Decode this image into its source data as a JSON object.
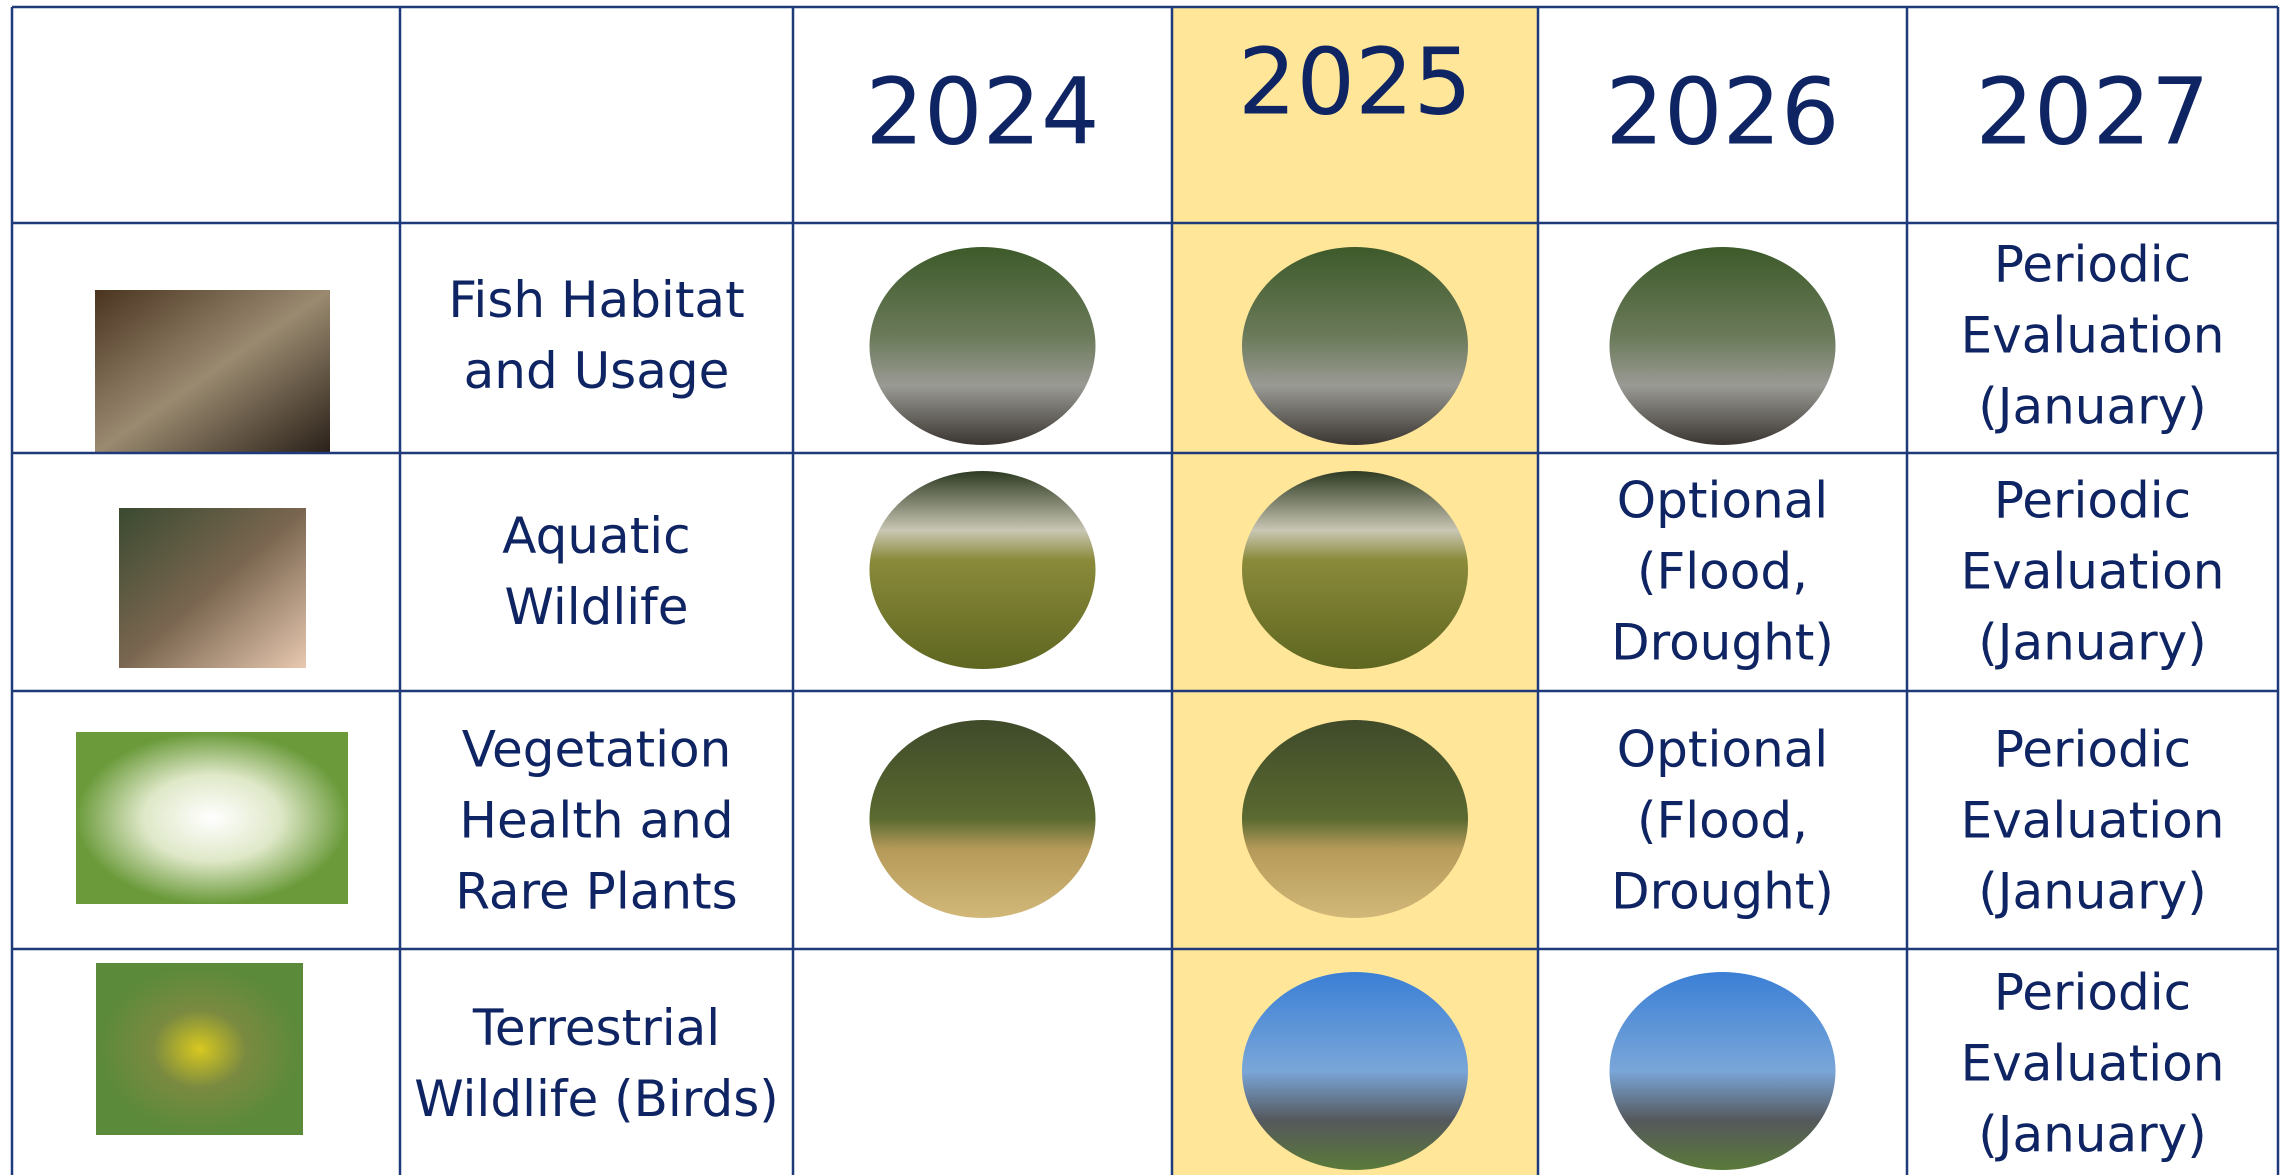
{
  "table": {
    "header": [
      "2024",
      "2025",
      "2026",
      "2027"
    ],
    "rows": [
      {
        "label": [
          "Fish Habitat",
          "and Usage"
        ],
        "cells": [
          null,
          null,
          null,
          [
            "Periodic",
            "Evaluation",
            "(January)"
          ]
        ]
      },
      {
        "label": [
          "Aquatic",
          "Wildlife"
        ],
        "cells": [
          null,
          null,
          [
            "Optional",
            "(Flood,",
            "Drought)"
          ],
          [
            "Periodic",
            "Evaluation",
            "(January)"
          ]
        ]
      },
      {
        "label": [
          "Vegetation",
          "Health and",
          "Rare Plants"
        ],
        "cells": [
          null,
          null,
          [
            "Optional",
            "(Flood,",
            "Drought)"
          ],
          [
            "Periodic",
            "Evaluation",
            "(January)"
          ]
        ]
      },
      {
        "label": [
          "Terrestrial",
          "Wildlife (Birds)"
        ],
        "cells": [
          null,
          null,
          null,
          [
            "Periodic",
            "Evaluation",
            "(January)"
          ]
        ]
      }
    ]
  }
}
